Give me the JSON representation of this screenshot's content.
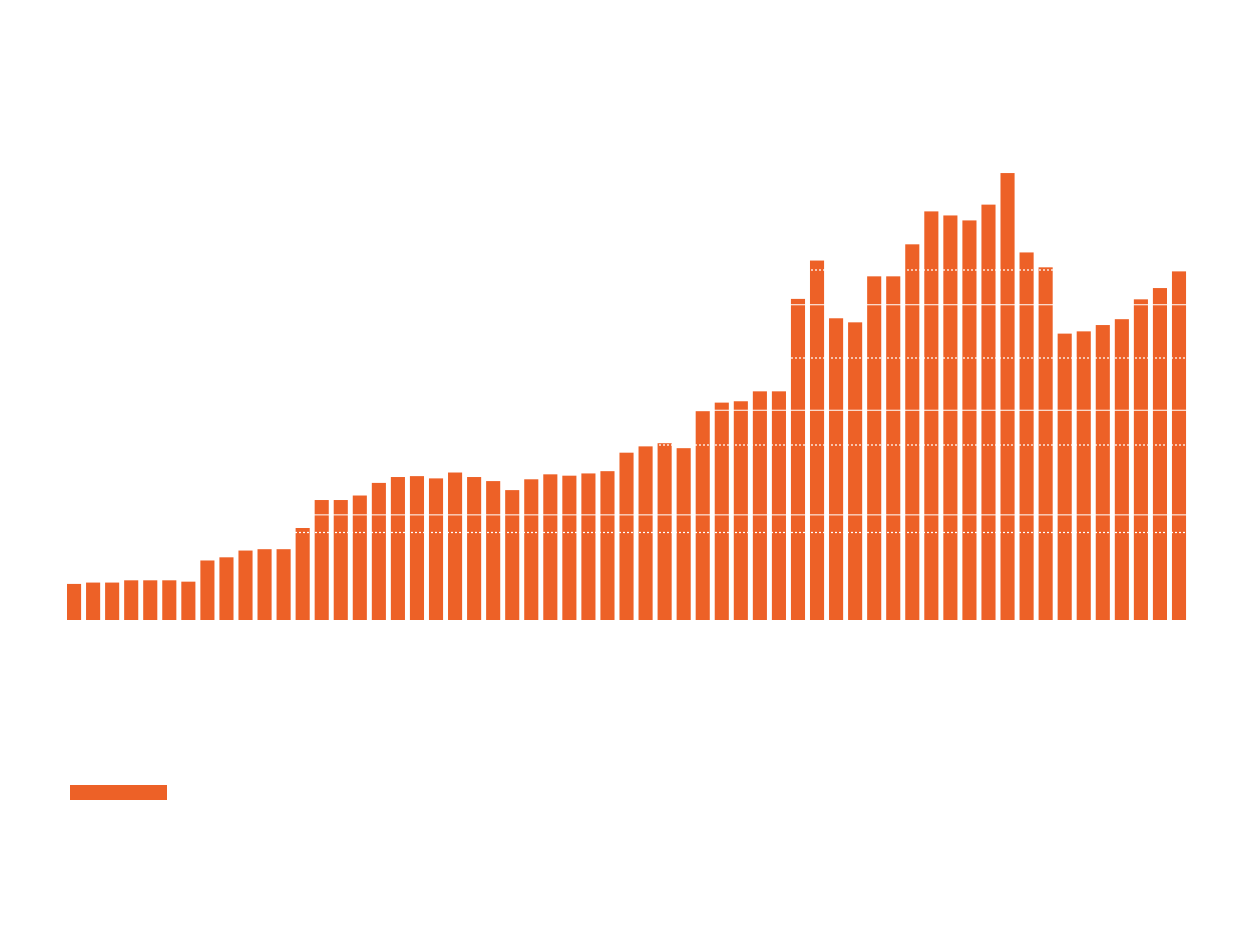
{
  "chart_data": {
    "type": "bar",
    "title": "",
    "xlabel": "",
    "ylabel": "",
    "grid": true,
    "legend": "bottom-left",
    "ylim": [
      0,
      100
    ],
    "series": [
      {
        "color": "#ed6127",
        "values": [
          8.0,
          8.3,
          8.3,
          8.8,
          8.8,
          8.8,
          8.5,
          13.2,
          13.9,
          15.4,
          15.7,
          15.7,
          20.4,
          26.6,
          26.6,
          27.6,
          30.4,
          31.7,
          31.9,
          31.4,
          32.7,
          31.7,
          30.8,
          28.8,
          31.2,
          32.3,
          32.0,
          32.5,
          33.0,
          37.1,
          38.5,
          39.2,
          38.1,
          46.3,
          48.2,
          48.5,
          50.7,
          50.7,
          71.2,
          79.7,
          66.9,
          66.0,
          76.2,
          76.2,
          83.3,
          90.6,
          89.7,
          88.6,
          92.1,
          99.1,
          81.5,
          78.2,
          63.5,
          64.0,
          65.4,
          66.7,
          71.1,
          73.6,
          77.3
        ]
      }
    ],
    "gridline_values": [
      19.4,
      23.3,
      38.8,
      46.5,
      58.1,
      69.9,
      77.6
    ]
  },
  "legend": {
    "swatch_color": "#ed6127"
  }
}
